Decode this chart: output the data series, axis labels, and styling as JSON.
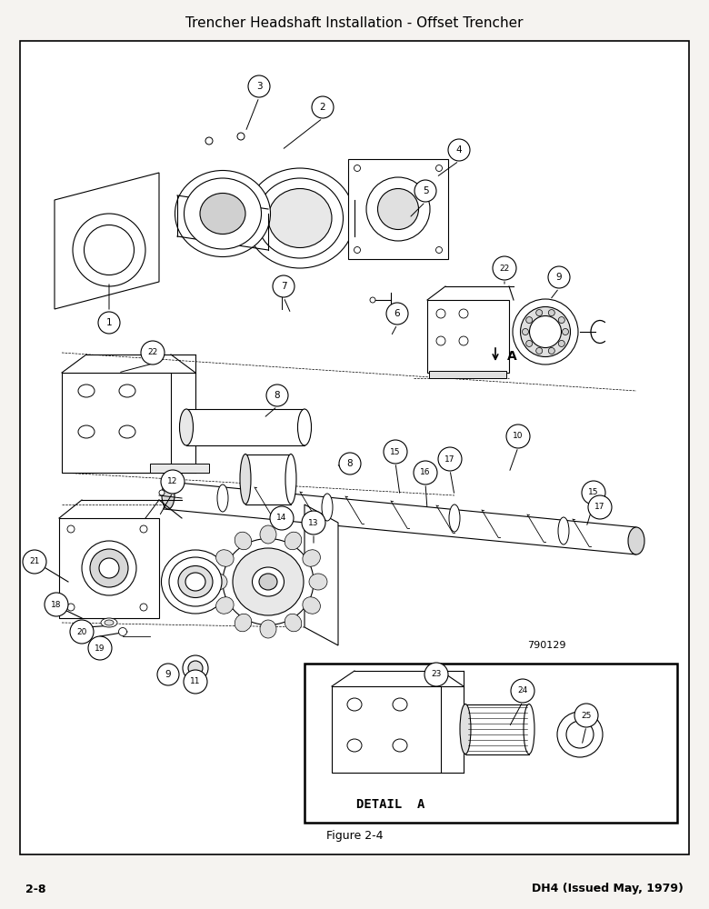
{
  "title": "Trencher Headshaft Installation - Offset Trencher",
  "figure_label": "Figure 2-4",
  "page_left": "2-8",
  "page_right": "DH4 (Issued May, 1979)",
  "part_number": "790129",
  "detail_label": "DETAIL  A",
  "bg_color": "#ffffff",
  "outer_bg": "#f5f3f0",
  "fig_width": 7.8,
  "fig_height": 10.0,
  "dpi": 100
}
